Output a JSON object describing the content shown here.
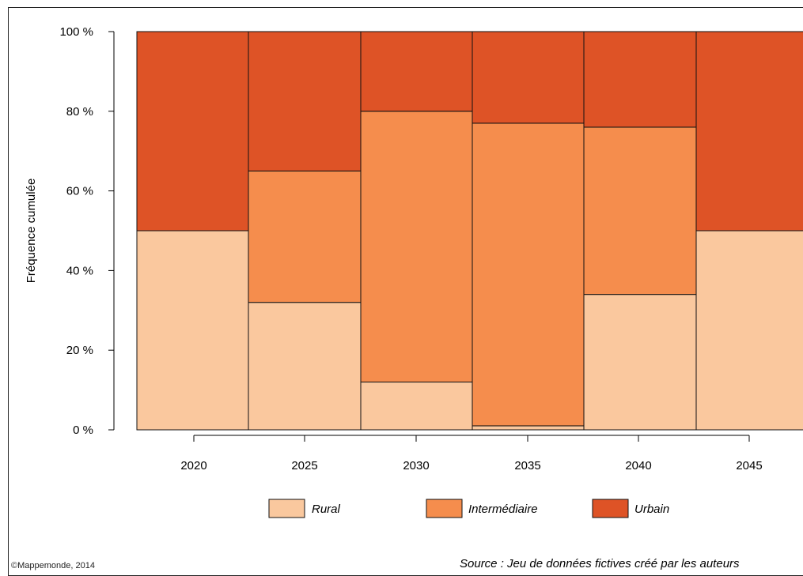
{
  "chart_data": {
    "type": "bar",
    "stacked": true,
    "variable_width": true,
    "categories": [
      "2020",
      "2025",
      "2030",
      "2035",
      "2040",
      "2045"
    ],
    "series": [
      {
        "name": "Rural",
        "values": [
          50,
          32,
          12,
          1,
          34,
          50
        ],
        "color": "#fac89e"
      },
      {
        "name": "Intermédiaire",
        "values": [
          0,
          33,
          68,
          76,
          42,
          0
        ],
        "color": "#f58d4d"
      },
      {
        "name": "Urbain",
        "values": [
          50,
          35,
          20,
          23,
          24,
          50
        ],
        "color": "#de5326"
      }
    ],
    "ylabel": "Fréquence cumulée",
    "xlabel": "",
    "ylim": [
      0,
      100
    ],
    "yticks": [
      {
        "value": 0,
        "label": "0 %"
      },
      {
        "value": 20,
        "label": "20 %"
      },
      {
        "value": 40,
        "label": "40 %"
      },
      {
        "value": 60,
        "label": "60 %"
      },
      {
        "value": 80,
        "label": "80 %"
      },
      {
        "value": 100,
        "label": "100 %"
      }
    ],
    "legend_position": "bottom",
    "grid": false
  },
  "source_text": "Source : Jeu de données fictives créé par les auteurs",
  "copyright_text": "©Mappemonde, 2014"
}
